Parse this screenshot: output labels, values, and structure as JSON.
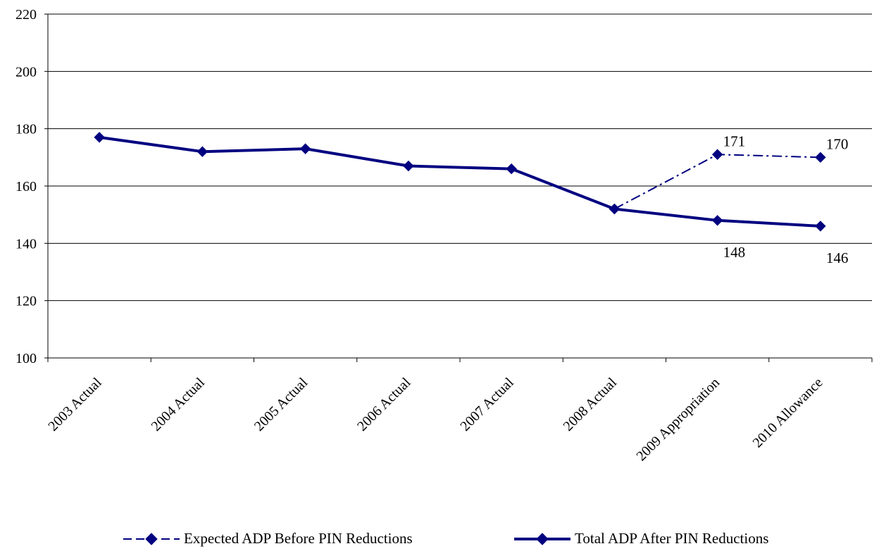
{
  "chart_data": {
    "type": "line",
    "title": "",
    "xlabel": "",
    "ylabel": "",
    "ylim": [
      100,
      220
    ],
    "yticks": [
      100,
      120,
      140,
      160,
      180,
      200,
      220
    ],
    "grid": true,
    "legend_position": "bottom",
    "categories": [
      "2003 Actual",
      "2004 Actual",
      "2005 Actual",
      "2006 Actual",
      "2007 Actual",
      "2008 Actual",
      "2009 Appropriation",
      "2010 Allowance"
    ],
    "series": [
      {
        "name": "Expected ADP Before PIN Reductions",
        "style": "dash-dot",
        "color": "#000080",
        "values": [
          null,
          null,
          null,
          null,
          null,
          152,
          171,
          170
        ],
        "data_labels": [
          null,
          null,
          null,
          null,
          null,
          null,
          "171",
          "170"
        ]
      },
      {
        "name": "Total ADP After PIN Reductions",
        "style": "solid",
        "color": "#000080",
        "values": [
          177,
          172,
          173,
          167,
          166,
          152,
          148,
          146
        ],
        "data_labels": [
          null,
          null,
          null,
          null,
          null,
          null,
          "148",
          "146"
        ]
      }
    ]
  }
}
